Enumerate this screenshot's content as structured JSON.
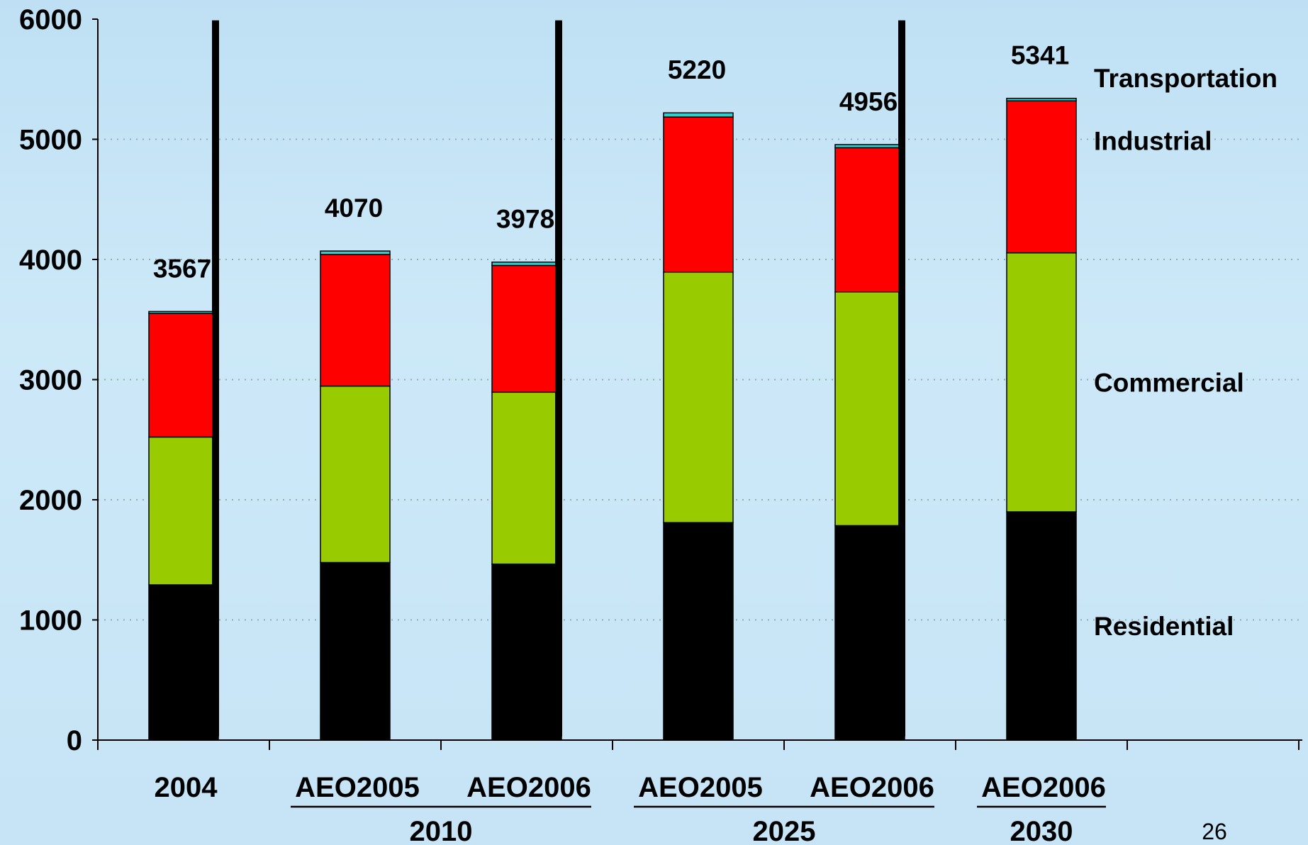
{
  "chart_data": {
    "type": "bar",
    "stacked": true,
    "categories": [
      "2004",
      "AEO2005",
      "AEO2006",
      "AEO2005",
      "AEO2006",
      "AEO2006"
    ],
    "groups": [
      {
        "label": "2010",
        "members": [
          1,
          2
        ]
      },
      {
        "label": "2025",
        "members": [
          3,
          4
        ]
      },
      {
        "label": "2030",
        "members": [
          5
        ]
      }
    ],
    "series": [
      {
        "name": "Residential",
        "color": "#000000",
        "values": [
          1292,
          1478,
          1465,
          1810,
          1785,
          1900
        ]
      },
      {
        "name": "Commercial",
        "color": "#99cc00",
        "values": [
          1230,
          1468,
          1430,
          2085,
          1945,
          2155
        ]
      },
      {
        "name": "Industrial",
        "color": "#ff0000",
        "values": [
          1030,
          1095,
          1055,
          1290,
          1200,
          1265
        ]
      },
      {
        "name": "Transportation",
        "color": "#33cccc",
        "values": [
          15,
          29,
          28,
          35,
          26,
          21
        ]
      }
    ],
    "totals": [
      "3567",
      "4070",
      "3978",
      "5220",
      "4956",
      "5341"
    ],
    "ylim": [
      0,
      6000
    ],
    "yticks": [
      "0",
      "1000",
      "2000",
      "3000",
      "4000",
      "5000",
      "6000"
    ],
    "grid": true,
    "legend_position": "right (labels beside last bar)",
    "title": "",
    "xlabel": "",
    "ylabel": ""
  },
  "page_number": "26"
}
